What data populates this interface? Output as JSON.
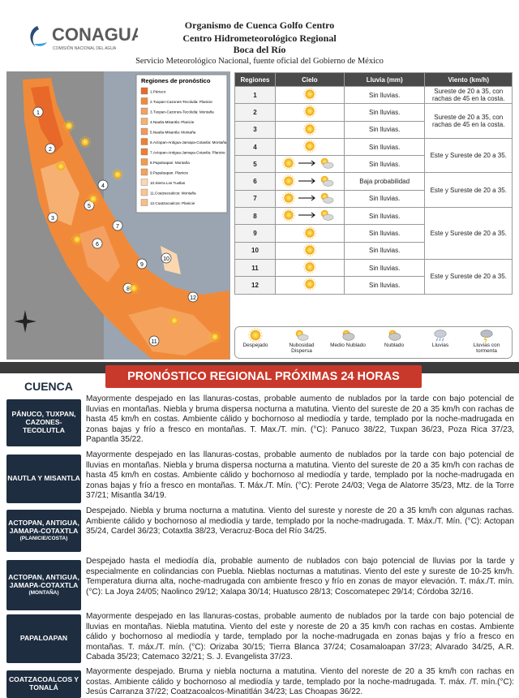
{
  "header": {
    "logo_text": "CONAGUA",
    "logo_subtitle": "COMISIÓN NACIONAL DEL AGUA",
    "line1": "Organismo de Cuenca Golfo Centro",
    "line2": "Centro Hidrometeorológico Regional",
    "line3": "Boca del Río",
    "line4": "Servicio Meteorológico Nacional, fuente oficial del Gobierno de México"
  },
  "map": {
    "legend_title": "Regiones de pronóstico",
    "legend_items": [
      "1.Pánuco",
      "2.Tuxpan-Cazones-Tecolutla: Planicie",
      "3.Tuxpan-Cazones-Tecolutla: Montaña",
      "4.Nautla-Misantla: Planicie",
      "5.Nautla-Misantla: Montaña",
      "6.Actopan-Antigua-Jamapa-Cotaxtla: Montaña",
      "7.Actopan-Antigua-Jamapa-Cotaxtla: Planicie",
      "8.Papaloapan: Montaña",
      "9.Papaloapan: Planicie",
      "10.Sierra Los Tuxtlas",
      "11.Coatzacoalcos: Montaña",
      "12.Coatzacoalcos: Planicie"
    ],
    "region_labels": [
      "1",
      "2",
      "3",
      "4",
      "5",
      "6",
      "7",
      "8",
      "9",
      "10",
      "11",
      "12"
    ]
  },
  "table": {
    "columns": [
      "Regiones",
      "Cielo",
      "Lluvia (mm)",
      "Viento (km/h)"
    ],
    "regions": [
      "1",
      "2",
      "3",
      "4",
      "5",
      "6",
      "7",
      "8",
      "9",
      "10",
      "11",
      "12"
    ],
    "rainfall": [
      "Sin lluvias.",
      "Sin lluvias.",
      "Sin lluvias.",
      "Sin lluvias.",
      "Sin lluvias.",
      "Baja probabilidad",
      "Sin lluvias.",
      "Sin lluvias.",
      "Sin lluvias.",
      "Sin lluvias.",
      "Sin lluvias.",
      "Sin lluvias."
    ],
    "wind": [
      "Sureste de 20 a 35, con rachas de 45 en la costa.",
      "Sureste de 20 a 35, con rachas de 45 en la costa.",
      "Este y Sureste de 20 a 35.",
      "Este y Sureste de 20 a 35.",
      "Este y Sureste de 20 a 35.",
      "Este y Sureste de 20 a 35."
    ]
  },
  "sky_legend": [
    "Despejado",
    "Nubosidad Dispersa",
    "Medio Nublado",
    "Nublado",
    "Lluvias",
    "Lluvias con tormenta"
  ],
  "forecast": {
    "title": "PRONÓSTICO REGIONAL PRÓXIMAS 24 HORAS",
    "column_title": "CUENCA",
    "rows": [
      {
        "basin": "PÁNUCO, TUXPAN, CAZONES-TECOLUTLA",
        "text": "Mayormente despejado en las llanuras-costas, probable aumento de nublados por la tarde con bajo potencial de lluvias en montañas. Niebla y bruma dispersa nocturna a matutina. Viento del sureste de 20 a 35 km/h con rachas de hasta 45 km/h en costas. Ambiente cálido y bochornoso al mediodía y tarde, templado por la noche-madrugada en zonas bajas y frío a fresco en montañas. T. Max./T. min. (°C): Panuco 38/22, Tuxpan 36/23, Poza Rica 37/23, Papantla 35/22."
      },
      {
        "basin": "NAUTLA Y MISANTLA",
        "text": "Mayormente despejado en las llanuras-costas, probable aumento de nublados por la tarde con bajo potencial de lluvias en montañas. Niebla y bruma dispersa nocturna a matutina. Viento del sureste de 20 a 35 km/h con rachas de hasta 45 km/h en costas. Ambiente cálido y bochornoso al mediodía y tarde, templado por la noche-madrugada en zonas bajas y frío a fresco en montañas. T. Máx./T. Mín. (°C): Perote 24/03; Vega de Alatorre 35/23, Mtz. de la Torre 37/21; Misantla 34/19."
      },
      {
        "basin": "ACTOPAN, ANTIGUA, JAMAPA-COTAXTLA",
        "detail": "(PLANICIE/COSTA)",
        "text": "Despejado. Niebla y bruma nocturna a matutina. Viento del sureste y noreste de 20 a 35 km/h con algunas rachas. Ambiente cálido y bochornoso al mediodía y tarde, templado por la noche-madrugada. T. Máx./T. Mín. (°C): Actopan 35/24, Cardel 36/23; Cotaxtla 38/23, Veracruz-Boca del Río 34/25."
      },
      {
        "basin": "ACTOPAN, ANTIGUA, JAMAPA-COTAXTLA",
        "detail": "(MONTAÑA)",
        "text": "Despejado hasta el mediodía día, probable aumento de nublados con bajo potencial de lluvias por la tarde y especialmente en colindancias con Puebla. Nieblas nocturnas a matutinas. Viento del este y sureste de 10-25 km/h. Temperatura diurna alta, noche-madrugada con ambiente fresco y frío en zonas de mayor elevación. T. máx./T. mín. (°C): La Joya 24/05; Naolinco 29/12; Xalapa 30/14; Huatusco 28/13; Coscomatepec 29/14; Córdoba 32/16."
      },
      {
        "basin": "PAPALOAPAN",
        "text": "Mayormente despejado en las llanuras-costas, probable aumento de nublados por la tarde con bajo potencial de lluvias en montañas. Niebla matutina. Viento del este y noreste de 20 a 35 km/h con rachas en costas. Ambiente cálido y bochornoso al mediodía y tarde, templado por la noche-madrugada en zonas bajas y frío a fresco en montañas. T. máx./T. mín. (°C): Orizaba 30/15; Tierra Blanca 37/24; Cosamaloapan 37/23; Alvarado 34/25, A.R. Cabada 35/23; Catemaco 32/21; S. J. Evangelista 37/23."
      },
      {
        "basin": "COATZACOALCOS Y TONALÁ",
        "text": "Mayormente despejado. Bruma y niebla nocturna a matutina. Viento del noreste de 20 a 35 km/h con rachas en costas. Ambiente cálido y bochornoso al mediodía y tarde, templado por la noche-madrugada. T. máx. /T. mín.(°C): Jesús Carranza 37/22; Coatzacoalcos-Minatitlán 34/23; Las Choapas 36/22."
      }
    ]
  }
}
